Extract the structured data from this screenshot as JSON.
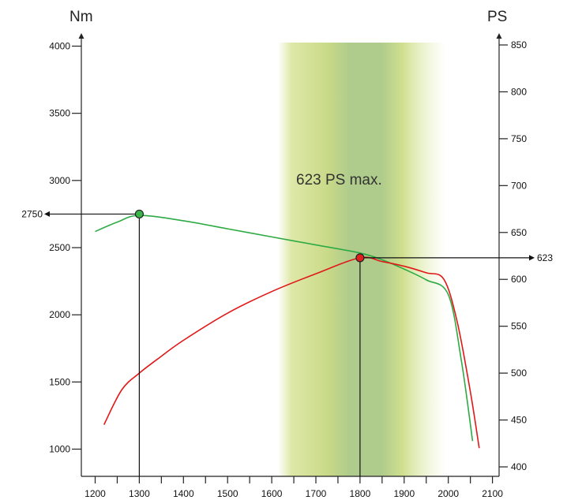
{
  "chart_data": {
    "type": "line",
    "title": "",
    "xlabel": "",
    "x_ticks": [
      1200,
      1300,
      1400,
      1500,
      1600,
      1700,
      1800,
      1900,
      2000,
      2100
    ],
    "xlim": [
      1200,
      2100
    ],
    "y_left": {
      "label": "Nm",
      "ticks": [
        1000,
        1500,
        2000,
        2500,
        3000,
        3500,
        4000
      ],
      "range": [
        1000,
        4000
      ]
    },
    "y_right": {
      "label": "PS",
      "ticks": [
        400,
        450,
        500,
        550,
        600,
        650,
        700,
        750,
        800,
        850
      ],
      "range": [
        400,
        850
      ]
    },
    "band": {
      "label": "623 PS max.",
      "x_range": [
        1650,
        1980
      ],
      "core_range": [
        1730,
        1850
      ],
      "colors": {
        "light": "#d3e08a",
        "core": "#b0cc8c"
      }
    },
    "series": [
      {
        "axis": "left",
        "color": "#2eaa44",
        "x": [
          1200,
          1250,
          1300,
          1400,
          1500,
          1600,
          1700,
          1800,
          1850,
          1900,
          1950,
          2000,
          2030,
          2055
        ],
        "y": [
          2620,
          2690,
          2740,
          2700,
          2640,
          2580,
          2520,
          2460,
          2410,
          2340,
          2260,
          2150,
          1650,
          1060
        ]
      },
      {
        "axis": "right",
        "color": "#e01818",
        "x": [
          1220,
          1260,
          1300,
          1350,
          1400,
          1500,
          1600,
          1700,
          1800,
          1850,
          1900,
          1950,
          1990,
          2020,
          2050,
          2070
        ],
        "y": [
          445,
          482,
          500,
          518,
          535,
          564,
          587,
          606,
          623,
          619,
          614,
          607,
          600,
          555,
          480,
          420
        ]
      }
    ],
    "markers": [
      {
        "x": 1300,
        "value": 2750,
        "axis": "left",
        "label": "2750",
        "color": "#39b54a"
      },
      {
        "x": 1800,
        "value": 623,
        "axis": "right",
        "label": "623",
        "color": "#e02020"
      }
    ]
  }
}
